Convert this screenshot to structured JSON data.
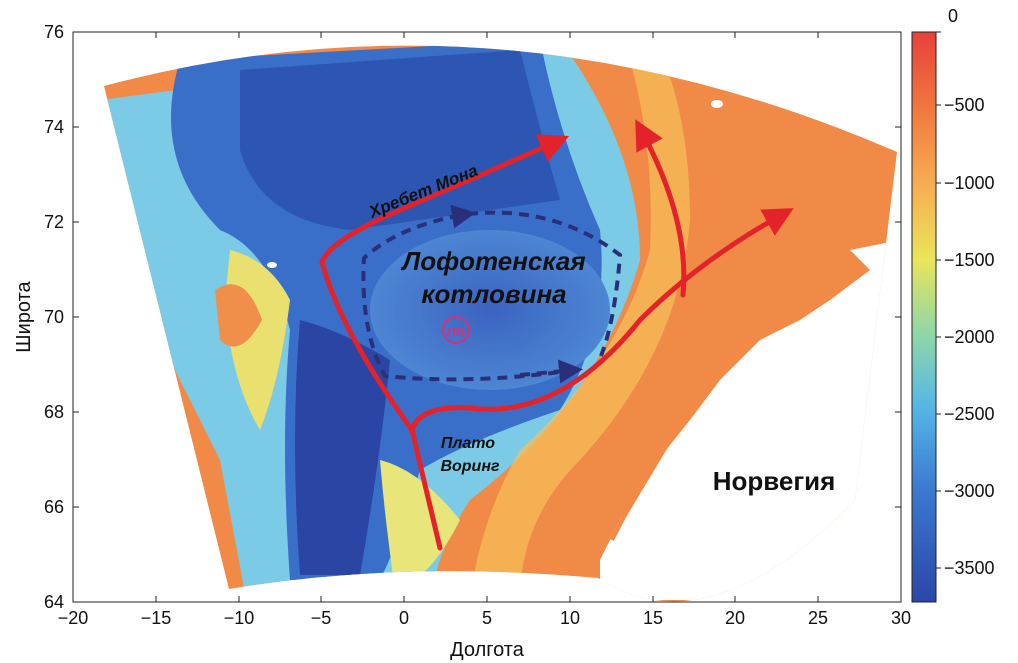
{
  "map": {
    "x_axis": {
      "title": "Долгота",
      "ticks": [
        "−20",
        "−15",
        "−10",
        "−5",
        "0",
        "5",
        "10",
        "15",
        "20",
        "25",
        "30"
      ]
    },
    "y_axis": {
      "title": "Широта",
      "ticks": [
        "64",
        "66",
        "68",
        "70",
        "72",
        "74",
        "76"
      ]
    },
    "colorbar": {
      "ticks": [
        "0",
        "−500",
        "−1000",
        "−1500",
        "−2000",
        "−2500",
        "−3000",
        "−3500"
      ],
      "colors": [
        "#e8413a",
        "#f07a40",
        "#f7b253",
        "#e9e55a",
        "#8fd6a8",
        "#55b6e6",
        "#3c7ad0",
        "#2b46a8"
      ]
    },
    "labels": {
      "mohns_ridge": "Хребет Мона",
      "basin_line1": "Лофотенская",
      "basin_line2": "котловина",
      "voring_line1": "Плато",
      "voring_line2": "Воринг",
      "norway": "Норвегия",
      "vortex": "ЛВ"
    },
    "colors": {
      "current_arrow": "#e3222a",
      "gyre_dashed": "#2a2f7a",
      "vortex": "#d6307a",
      "deep_water": "#2e4fa8",
      "shallow": "#ef8a4a"
    }
  }
}
